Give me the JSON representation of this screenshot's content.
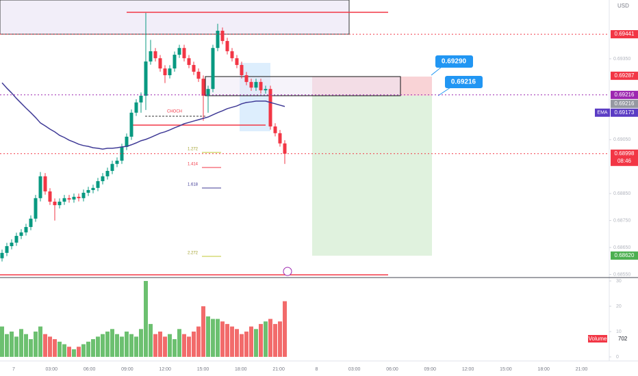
{
  "chart_data": {
    "type": "candlestick",
    "currency": "USD",
    "x_labels": [
      "7",
      "03:00",
      "06:00",
      "09:00",
      "12:00",
      "15:00",
      "18:00",
      "21:00",
      "8",
      "03:00",
      "06:00",
      "09:00",
      "12:00",
      "15:00",
      "18:00",
      "21:00"
    ],
    "open": [
      0.6861,
      0.6863,
      0.68655,
      0.68668,
      0.68693,
      0.68706,
      0.68726,
      0.68757,
      0.68833,
      0.68914,
      0.68858,
      0.6882,
      0.68807,
      0.6882,
      0.68833,
      0.68828,
      0.68838,
      0.68833,
      0.68853,
      0.68863,
      0.68871,
      0.68896,
      0.68914,
      0.68934,
      0.6896,
      0.68972,
      0.69023,
      0.69061,
      0.6915,
      0.69188,
      0.69213,
      0.6934,
      0.69378,
      0.69352,
      0.69314,
      0.69289,
      0.69314,
      0.69365,
      0.6939,
      0.69352,
      0.69327,
      0.69302,
      0.69276,
      0.69213,
      0.69238,
      0.6939,
      0.69454,
      0.69416,
      0.69378,
      0.69352,
      0.69327,
      0.69289,
      0.69264,
      0.69243,
      0.69264,
      0.69233,
      0.69238,
      0.69099,
      0.69074,
      0.69036
    ],
    "high": [
      0.68642,
      0.68667,
      0.6868,
      0.68705,
      0.68718,
      0.68738,
      0.68769,
      0.68845,
      0.6893,
      0.68926,
      0.6887,
      0.68832,
      0.68832,
      0.68845,
      0.68845,
      0.6885,
      0.6885,
      0.68865,
      0.68875,
      0.68883,
      0.68908,
      0.68926,
      0.68946,
      0.68972,
      0.68984,
      0.69035,
      0.69073,
      0.69162,
      0.692,
      0.69225,
      0.6952,
      0.6942,
      0.6939,
      0.69364,
      0.69326,
      0.69326,
      0.69377,
      0.69402,
      0.69402,
      0.69364,
      0.69339,
      0.69314,
      0.69288,
      0.6925,
      0.69402,
      0.6948,
      0.69466,
      0.69428,
      0.6939,
      0.69364,
      0.69339,
      0.69301,
      0.69276,
      0.69276,
      0.69276,
      0.6925,
      0.6925,
      0.69111,
      0.69086,
      0.69048
    ],
    "low": [
      0.68598,
      0.68618,
      0.68643,
      0.68656,
      0.68681,
      0.68694,
      0.68714,
      0.68745,
      0.68821,
      0.68846,
      0.68808,
      0.6875,
      0.68795,
      0.68808,
      0.68816,
      0.68816,
      0.68821,
      0.68821,
      0.68841,
      0.68851,
      0.68859,
      0.68884,
      0.68902,
      0.68922,
      0.68948,
      0.6896,
      0.69011,
      0.69049,
      0.69138,
      0.6915,
      0.6916,
      0.69328,
      0.6934,
      0.69302,
      0.6926,
      0.69277,
      0.69302,
      0.69353,
      0.6934,
      0.69315,
      0.6929,
      0.69264,
      0.6912,
      0.6915,
      0.69226,
      0.69378,
      0.69404,
      0.69366,
      0.6934,
      0.69315,
      0.69277,
      0.69252,
      0.69231,
      0.69231,
      0.69221,
      0.69221,
      0.69087,
      0.69062,
      0.69024,
      0.6896
    ],
    "close": [
      0.6863,
      0.68655,
      0.68668,
      0.68693,
      0.68706,
      0.68726,
      0.68757,
      0.68833,
      0.68914,
      0.68858,
      0.6882,
      0.68807,
      0.6882,
      0.68833,
      0.68828,
      0.68838,
      0.68833,
      0.68853,
      0.68863,
      0.68871,
      0.68896,
      0.68914,
      0.68934,
      0.6896,
      0.68972,
      0.69023,
      0.69061,
      0.6915,
      0.69188,
      0.69213,
      0.6934,
      0.69378,
      0.69352,
      0.69314,
      0.69289,
      0.69314,
      0.69365,
      0.6939,
      0.69352,
      0.69327,
      0.69302,
      0.69276,
      0.69213,
      0.69238,
      0.6939,
      0.69454,
      0.69416,
      0.69378,
      0.69352,
      0.69327,
      0.69289,
      0.69264,
      0.69243,
      0.69264,
      0.69233,
      0.69238,
      0.69099,
      0.69074,
      0.69036,
      0.68998
    ],
    "up_color": "#089981",
    "down_color": "#f23645",
    "ema": {
      "name": "EMA",
      "color": "#3f3a96",
      "values": [
        0.69261,
        0.69241,
        0.69223,
        0.69203,
        0.69185,
        0.69167,
        0.6915,
        0.69132,
        0.69112,
        0.69101,
        0.69089,
        0.69079,
        0.69066,
        0.69058,
        0.69048,
        0.69041,
        0.69033,
        0.69028,
        0.69025,
        0.6902,
        0.69018,
        0.69015,
        0.69018,
        0.69018,
        0.6902,
        0.69023,
        0.69025,
        0.69031,
        0.69038,
        0.69046,
        0.69051,
        0.69058,
        0.69066,
        0.69074,
        0.69079,
        0.69086,
        0.69094,
        0.69101,
        0.69109,
        0.69114,
        0.69119,
        0.69124,
        0.69129,
        0.69134,
        0.69142,
        0.6915,
        0.69157,
        0.69165,
        0.6917,
        0.69175,
        0.69183,
        0.69188,
        0.6919,
        0.69193,
        0.69193,
        0.69193,
        0.69188,
        0.69183,
        0.69178,
        0.69173
      ]
    },
    "volume": {
      "name": "Volume",
      "label": "702",
      "values": [
        12,
        9,
        10,
        8,
        11,
        9,
        7,
        10,
        12,
        9,
        8,
        7,
        6,
        5,
        4,
        3,
        4,
        5,
        6,
        7,
        8,
        9,
        10,
        11,
        9,
        8,
        10,
        9,
        8,
        11,
        30,
        13,
        9,
        10,
        8,
        9,
        7,
        11,
        9,
        8,
        10,
        12,
        20,
        16,
        15,
        15,
        14,
        13,
        12,
        11,
        9,
        10,
        12,
        11,
        13,
        14,
        15,
        13,
        14,
        22
      ]
    },
    "ylim": [
      0.68541,
      0.69568
    ],
    "yticks": [
      {
        "value": 0.6855,
        "label": "0.68550"
      },
      {
        "value": 0.6865,
        "label": "0.68650"
      },
      {
        "value": 0.6875,
        "label": "0.68750"
      },
      {
        "value": 0.6885,
        "label": "0.68850"
      },
      {
        "value": 0.6905,
        "label": "0.69050"
      },
      {
        "value": 0.6935,
        "label": "0.69350"
      }
    ],
    "volume_ylim": [
      0,
      30
    ],
    "volume_yticks": [
      0,
      10,
      20,
      30
    ],
    "price_labels": [
      {
        "value": 0.69441,
        "label": "0.69441",
        "color": "#f23645",
        "line": true
      },
      {
        "value": 0.69287,
        "label": "0.69287",
        "color": "#f23645"
      },
      {
        "value": 0.69216,
        "label": "0.69216",
        "color": "#9c27b0",
        "line": true
      },
      {
        "value": 0.69216,
        "label": "0.69216",
        "color": "#9598a1"
      },
      {
        "value": 0.69173,
        "label": "0.69173",
        "color": "#5b3cc4",
        "name": "EMA"
      },
      {
        "value": 0.68998,
        "label": "0.68998",
        "color": "#f23645",
        "line": true,
        "countdown": "08:46"
      },
      {
        "value": 0.6862,
        "label": "0.68620",
        "color": "#4caf50"
      }
    ],
    "annotations": {
      "choch": "CHOCH",
      "fib": [
        "1.272",
        "1.414",
        "1.618",
        "2.272"
      ],
      "callouts": [
        "0.69290",
        "0.69216"
      ]
    }
  }
}
